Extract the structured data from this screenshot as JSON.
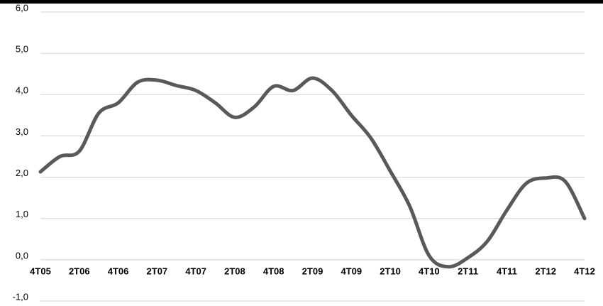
{
  "chart_data": {
    "type": "line",
    "categories": [
      "4T05",
      null,
      "2T06",
      null,
      "4T06",
      null,
      "2T07",
      null,
      "4T07",
      null,
      "2T08",
      null,
      "4T08",
      null,
      "2T09",
      null,
      "4T09",
      null,
      "2T10",
      null,
      "4T10",
      null,
      "2T11",
      null,
      "4T11",
      null,
      "2T12",
      null,
      "4T12"
    ],
    "series": [
      {
        "color": "#595959",
        "values": [
          2.13,
          2.5,
          2.63,
          3.55,
          3.8,
          4.3,
          4.35,
          4.22,
          4.1,
          3.8,
          3.45,
          3.7,
          4.2,
          4.1,
          4.4,
          4.1,
          3.5,
          2.95,
          2.15,
          1.3,
          0.1,
          -0.17,
          0.05,
          0.45,
          1.2,
          1.85,
          1.98,
          1.9,
          1.0
        ]
      }
    ],
    "ylim": [
      -1,
      6
    ],
    "yticks": [
      {
        "value": -1,
        "label": "-1,0"
      },
      {
        "value": 0,
        "label": "0,0"
      },
      {
        "value": 1,
        "label": "1,0"
      },
      {
        "value": 2,
        "label": "2,0"
      },
      {
        "value": 3,
        "label": "3,0"
      },
      {
        "value": 4,
        "label": "4,0"
      },
      {
        "value": 5,
        "label": "5,0"
      },
      {
        "value": 6,
        "label": "6,0"
      }
    ],
    "grid": true
  }
}
